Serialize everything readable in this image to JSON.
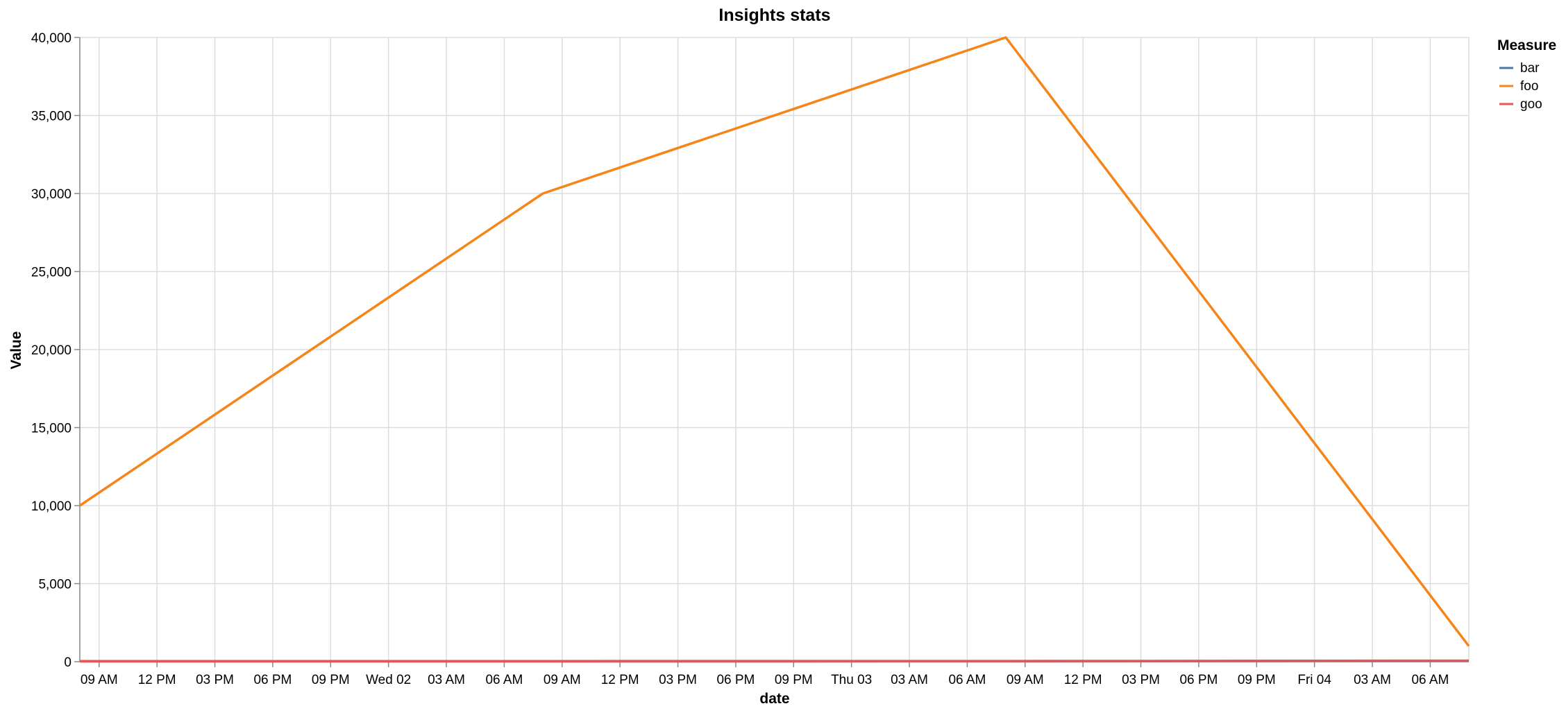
{
  "chart_data": {
    "type": "line",
    "title": "Insights stats",
    "xlabel": "date",
    "ylabel": "Value",
    "x": [
      "2024-10-01T08:00",
      "2024-10-02T08:00",
      "2024-10-03T08:00",
      "2024-10-04T08:00"
    ],
    "x_end": "2024-10-04T08:00",
    "ylim": [
      0,
      40000
    ],
    "y_ticks": [
      0,
      5000,
      10000,
      15000,
      20000,
      25000,
      30000,
      35000,
      40000
    ],
    "y_tick_labels": [
      "0",
      "5,000",
      "10,000",
      "15,000",
      "20,000",
      "25,000",
      "30,000",
      "35,000",
      "40,000"
    ],
    "x_tick_labels": [
      "09 AM",
      "12 PM",
      "03 PM",
      "06 PM",
      "09 PM",
      "Wed 02",
      "03 AM",
      "06 AM",
      "09 AM",
      "12 PM",
      "03 PM",
      "06 PM",
      "09 PM",
      "Thu 03",
      "03 AM",
      "06 AM",
      "09 AM",
      "12 PM",
      "03 PM",
      "06 PM",
      "09 PM",
      "Fri 04",
      "03 AM",
      "06 AM"
    ],
    "x_tick_hours": [
      9,
      12,
      15,
      18,
      21,
      24,
      27,
      30,
      33,
      36,
      39,
      42,
      45,
      48,
      51,
      54,
      57,
      60,
      63,
      66,
      69,
      72,
      75,
      78
    ],
    "grid": true,
    "legend": {
      "title": "Measure",
      "placement": "top-right"
    },
    "series": [
      {
        "name": "bar",
        "color": "#4c78a8",
        "points": [
          [
            8,
            20
          ],
          [
            32,
            20
          ],
          [
            56,
            25
          ],
          [
            80,
            50
          ]
        ]
      },
      {
        "name": "foo",
        "color": "#f58518",
        "points": [
          [
            8,
            10000
          ],
          [
            32,
            30000
          ],
          [
            56,
            40000
          ],
          [
            80,
            1000
          ]
        ]
      },
      {
        "name": "goo",
        "color": "#e45756",
        "points": [
          [
            8,
            30
          ],
          [
            32,
            35
          ],
          [
            56,
            40
          ],
          [
            80,
            60
          ]
        ]
      }
    ]
  }
}
